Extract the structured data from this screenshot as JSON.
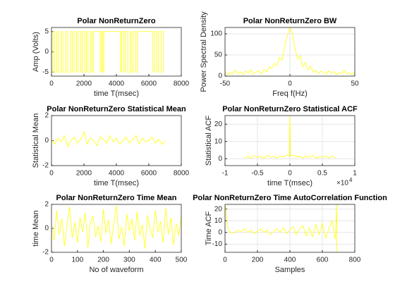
{
  "chart_data": [
    {
      "type": "stairs",
      "title": "Polar NonReturnZero",
      "xlabel": "time T(msec)",
      "ylabel": "Amp (Volts)",
      "color": "#ffff00",
      "grid": false,
      "x": [
        0,
        80,
        180,
        330,
        420,
        600,
        700,
        900,
        1000,
        1180,
        1280,
        1400,
        1550,
        1650,
        1800,
        1900,
        2050,
        2150,
        2250,
        2400,
        2500,
        2600,
        3000,
        3080,
        3150,
        3220,
        4250,
        4320,
        4450,
        4550,
        4700,
        4850,
        4950,
        5050,
        5200,
        5300,
        6250,
        6350,
        6500,
        6600,
        6750,
        6900,
        7000
      ],
      "values": [
        -5,
        5,
        -5,
        5,
        -5,
        5,
        -5,
        5,
        -5,
        5,
        -5,
        5,
        -5,
        5,
        -5,
        5,
        -5,
        5,
        -5,
        5,
        -5,
        5,
        -5,
        5,
        -5,
        5,
        -5,
        5,
        -5,
        5,
        -5,
        5,
        -5,
        5,
        -5,
        5,
        -5,
        5,
        -5,
        5,
        -5,
        5,
        5
      ],
      "xlim": [
        0,
        8000
      ],
      "xticks": [
        0,
        2000,
        4000,
        6000,
        8000
      ],
      "ylim": [
        -6,
        6
      ],
      "yticks": [
        -5,
        0,
        5
      ]
    },
    {
      "type": "line",
      "title": "Polar NonReturnZero BW",
      "xlabel": "Freq f(Hz)",
      "ylabel": "Power Spectral Density",
      "color": "#ffff00",
      "grid": true,
      "x": [
        -50,
        -48,
        -46,
        -44,
        -42,
        -40,
        -38,
        -36,
        -34,
        -32,
        -30,
        -28,
        -26,
        -24,
        -22,
        -20,
        -18,
        -16,
        -14,
        -12,
        -10,
        -8,
        -6,
        -4,
        -2,
        0,
        2,
        4,
        6,
        8,
        10,
        12,
        14,
        16,
        18,
        20,
        22,
        24,
        26,
        28,
        30,
        32,
        34,
        36,
        38,
        40,
        42,
        44,
        46,
        48,
        50
      ],
      "values": [
        12,
        3,
        8,
        5,
        14,
        6,
        10,
        4,
        12,
        7,
        15,
        5,
        9,
        13,
        6,
        16,
        10,
        22,
        18,
        30,
        25,
        45,
        38,
        70,
        95,
        115,
        100,
        65,
        40,
        48,
        22,
        32,
        15,
        24,
        9,
        14,
        6,
        12,
        8,
        5,
        13,
        7,
        11,
        4,
        9,
        6,
        14,
        5,
        8,
        3,
        12
      ],
      "xlim": [
        -50,
        50
      ],
      "xticks": [
        -50,
        0,
        50
      ],
      "ylim": [
        0,
        115
      ],
      "yticks": [
        0,
        50,
        100
      ]
    },
    {
      "type": "line",
      "title": "Polar NonReturnZero Statistical Mean",
      "xlabel": "time T(msec)",
      "ylabel": "Statistical Mean",
      "color": "#ffff00",
      "grid": false,
      "x": [
        0,
        200,
        400,
        600,
        800,
        1000,
        1200,
        1400,
        1600,
        1800,
        2000,
        2200,
        2400,
        2600,
        2800,
        3000,
        3200,
        3400,
        3600,
        3800,
        4000,
        4200,
        4400,
        4600,
        4800,
        5000,
        5200,
        5400,
        5600,
        5800,
        6000,
        6200,
        6400,
        6600,
        6800,
        7000
      ],
      "values": [
        0.1,
        -0.3,
        0.2,
        -0.1,
        0.4,
        -0.5,
        0.0,
        0.3,
        -0.2,
        0.1,
        0.7,
        -0.3,
        0.2,
        0.0,
        -0.4,
        0.3,
        0.1,
        -0.2,
        0.4,
        -0.1,
        0.2,
        -0.3,
        0.0,
        0.3,
        -0.2,
        0.1,
        0.4,
        -0.3,
        0.2,
        -0.1,
        0.0,
        0.3,
        -0.2,
        0.1,
        -0.3,
        0.0
      ],
      "xlim": [
        0,
        8000
      ],
      "xticks": [
        0,
        2000,
        4000,
        6000,
        8000
      ],
      "ylim": [
        -2,
        2
      ],
      "yticks": [
        -2,
        0,
        2
      ]
    },
    {
      "type": "line",
      "title": "Polar NonReturnZero Statistical ACF",
      "xlabel": "time T(msec)",
      "ylabel": "Statistical ACF",
      "color": "#ffff00",
      "grid": true,
      "exponent": {
        "base": "×10",
        "power": "4"
      },
      "x": [
        -7000,
        -6500,
        -6000,
        -5500,
        -5000,
        -4500,
        -4000,
        -3500,
        -3000,
        -2500,
        -2000,
        -1500,
        -1000,
        -500,
        -100,
        0,
        100,
        500,
        1000,
        1500,
        2000,
        2500,
        3000,
        3500,
        4000,
        4500,
        5000,
        5500,
        6000,
        6500,
        7000
      ],
      "values": [
        0.5,
        1.5,
        0.3,
        1.8,
        0.8,
        1.2,
        0.2,
        2.0,
        0.9,
        1.4,
        0.4,
        1.6,
        1.0,
        2.2,
        1.5,
        25,
        1.5,
        2.2,
        1.0,
        1.6,
        0.4,
        1.4,
        0.9,
        2.0,
        0.2,
        1.2,
        0.8,
        1.8,
        0.3,
        1.5,
        0.5
      ],
      "xlim": [
        -10000,
        10000
      ],
      "xticks": [
        {
          "value": -10000,
          "label": "-1"
        },
        {
          "value": -5000,
          "label": "-0.5"
        },
        0,
        {
          "value": 5000,
          "label": "0.5"
        },
        {
          "value": 10000,
          "label": "1"
        }
      ],
      "ylim": [
        -4,
        25
      ],
      "yticks": [
        0,
        10,
        20
      ]
    },
    {
      "type": "line",
      "title": "Polar NonReturnZero Time Mean",
      "xlabel": "No of waveform",
      "ylabel": "time Mean",
      "color": "#ffff00",
      "grid": false,
      "x": [
        0,
        10,
        20,
        30,
        40,
        50,
        60,
        70,
        80,
        90,
        100,
        110,
        120,
        130,
        140,
        150,
        160,
        170,
        180,
        190,
        200,
        210,
        220,
        230,
        240,
        250,
        260,
        270,
        280,
        290,
        300,
        310,
        320,
        330,
        340,
        350,
        360,
        370,
        380,
        390,
        400,
        410,
        420,
        430,
        440,
        450,
        460,
        470,
        480,
        490,
        500
      ],
      "values": [
        0.2,
        -1.0,
        1.5,
        -0.5,
        0.8,
        -1.5,
        0.3,
        1.8,
        -0.8,
        0.5,
        -1.2,
        0.9,
        -0.3,
        1.3,
        -1.6,
        0.4,
        1.0,
        -0.7,
        0.2,
        -1.1,
        1.6,
        -0.4,
        0.7,
        -1.3,
        0.5,
        1.9,
        -0.9,
        0.1,
        -1.5,
        1.2,
        -0.2,
        0.8,
        -1.0,
        1.4,
        -0.6,
        0.3,
        -1.7,
        1.1,
        0.0,
        -0.8,
        1.5,
        -0.3,
        0.6,
        -1.2,
        1.7,
        -0.5,
        0.9,
        -1.4,
        0.4,
        -0.6,
        1.0
      ],
      "xlim": [
        0,
        500
      ],
      "xticks": [
        0,
        100,
        200,
        300,
        400,
        500
      ],
      "ylim": [
        -2,
        2
      ],
      "yticks": [
        -2,
        0,
        2
      ]
    },
    {
      "type": "line",
      "title": "Polar NonReturnZero Time AutoCorrelation Function",
      "xlabel": "Samples",
      "ylabel": "Time ACF",
      "color": "#ffff00",
      "grid": true,
      "x": [
        0,
        20,
        40,
        60,
        80,
        100,
        120,
        140,
        160,
        180,
        200,
        220,
        240,
        260,
        280,
        300,
        320,
        340,
        360,
        380,
        400,
        420,
        440,
        460,
        480,
        500,
        520,
        540,
        560,
        580,
        600,
        620,
        640,
        660,
        680,
        688,
        690
      ],
      "values": [
        24,
        2,
        -1,
        0,
        2,
        1,
        3,
        0,
        2,
        -1,
        1,
        3,
        0,
        2,
        -2,
        1,
        3,
        0,
        4,
        -1,
        2,
        5,
        -2,
        3,
        6,
        -3,
        4,
        -4,
        7,
        -2,
        8,
        -5,
        3,
        10,
        -6,
        24,
        -17
      ],
      "xlim": [
        0,
        800
      ],
      "xticks": [
        0,
        200,
        400,
        600,
        800
      ],
      "ylim": [
        -17,
        24
      ],
      "yticks": [
        -10,
        0,
        10,
        20
      ]
    }
  ]
}
